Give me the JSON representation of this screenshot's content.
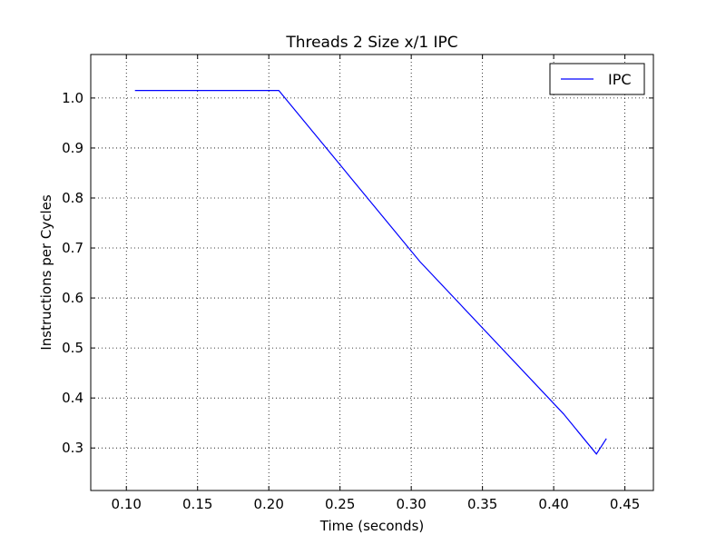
{
  "chart_data": {
    "type": "line",
    "title": "Threads 2 Size x/1 IPC",
    "xlabel": "Time (seconds)",
    "ylabel": "Instructions per Cycles",
    "xlim": [
      0.075,
      0.47
    ],
    "ylim": [
      0.215,
      1.087
    ],
    "x_ticks": [
      0.1,
      0.15,
      0.2,
      0.25,
      0.3,
      0.35,
      0.4,
      0.45
    ],
    "x_tick_labels": [
      "0.10",
      "0.15",
      "0.20",
      "0.25",
      "0.30",
      "0.35",
      "0.40",
      "0.45"
    ],
    "y_ticks": [
      0.3,
      0.4,
      0.5,
      0.6,
      0.7,
      0.8,
      0.9,
      1.0
    ],
    "y_tick_labels": [
      "0.3",
      "0.4",
      "0.5",
      "0.6",
      "0.7",
      "0.8",
      "0.9",
      "1.0"
    ],
    "grid": true,
    "legend_position": "top-right",
    "series": [
      {
        "name": "IPC",
        "color": "#0000ff",
        "x": [
          0.106,
          0.207,
          0.306,
          0.407,
          0.43,
          0.437
        ],
        "y": [
          1.015,
          1.015,
          0.673,
          0.368,
          0.288,
          0.319
        ]
      }
    ]
  }
}
